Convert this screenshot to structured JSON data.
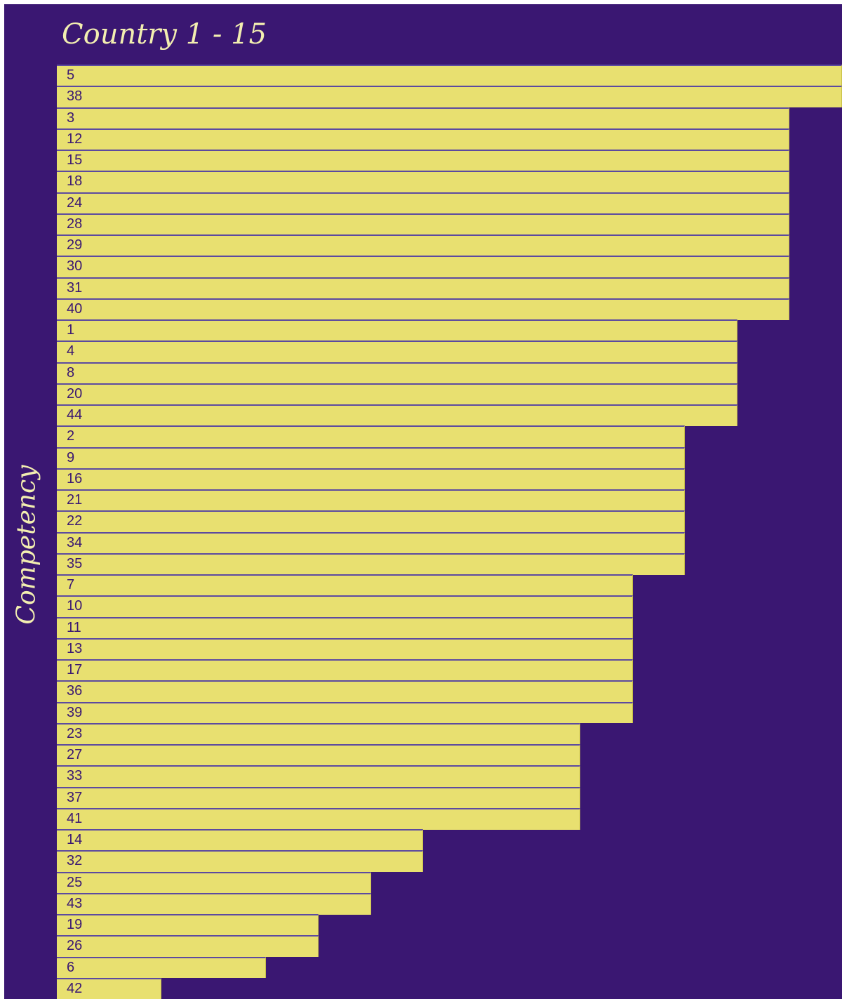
{
  "chart_data": {
    "type": "bar",
    "orientation": "horizontal",
    "title": "Country 1 - 15",
    "ylabel": "Competency",
    "xlabel": "",
    "categories": [
      "5",
      "38",
      "3",
      "12",
      "15",
      "18",
      "24",
      "28",
      "29",
      "30",
      "31",
      "40",
      "1",
      "4",
      "8",
      "20",
      "44",
      "2",
      "9",
      "16",
      "21",
      "22",
      "34",
      "35",
      "7",
      "10",
      "11",
      "13",
      "17",
      "36",
      "39",
      "23",
      "27",
      "33",
      "37",
      "41",
      "14",
      "32",
      "25",
      "43",
      "19",
      "26",
      "6",
      "42"
    ],
    "values": [
      15,
      15,
      14,
      14,
      14,
      14,
      14,
      14,
      14,
      14,
      14,
      14,
      13,
      13,
      13,
      13,
      13,
      12,
      12,
      12,
      12,
      12,
      12,
      12,
      11,
      11,
      11,
      11,
      11,
      11,
      11,
      10,
      10,
      10,
      10,
      10,
      7,
      7,
      6,
      6,
      5,
      5,
      4,
      2
    ],
    "xlim": [
      0,
      15
    ],
    "grid": false,
    "legend": "none",
    "colors": {
      "background": "#3a1772",
      "bar": "#e8e070",
      "text": "#f2eeb0",
      "bar_text": "#3a1772"
    }
  }
}
